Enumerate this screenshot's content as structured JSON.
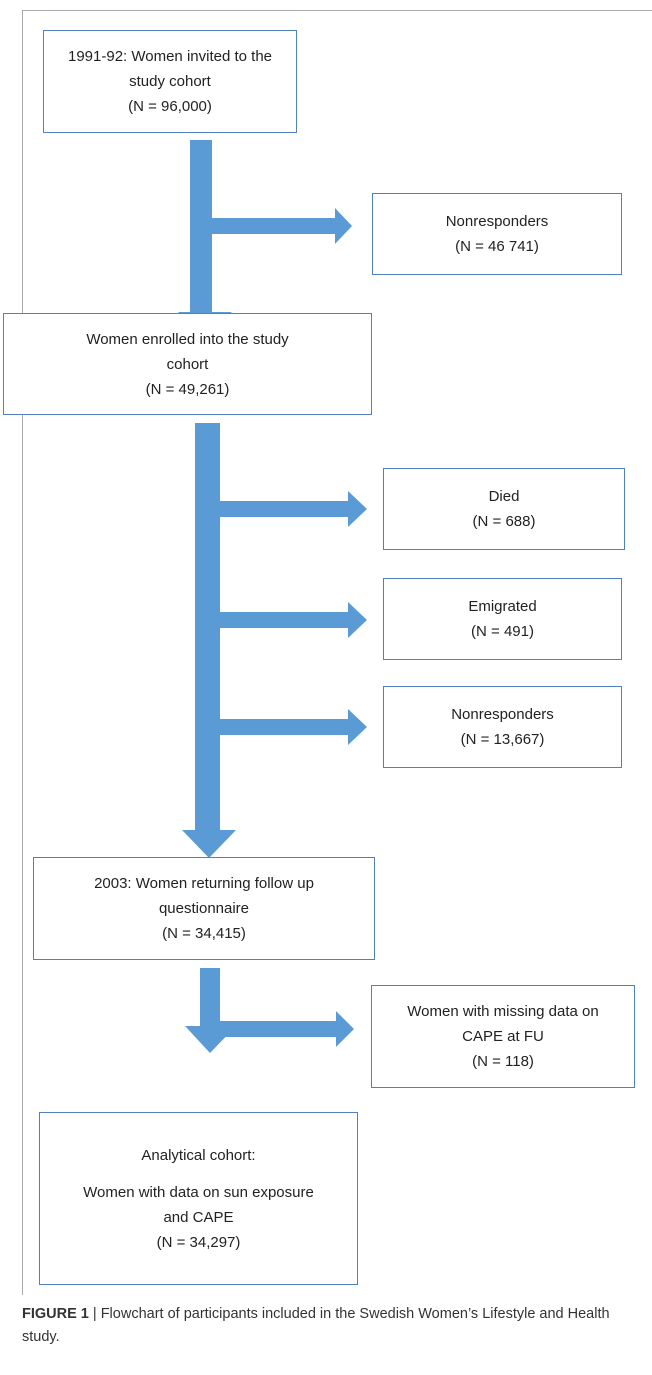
{
  "boxes": [
    {
      "lines": [
        "1991-92: Women invited to the",
        "study cohort",
        "(N = 96,000)"
      ]
    },
    {
      "lines": [
        "Nonresponders",
        "(N = 46 741)"
      ]
    },
    {
      "lines": [
        "Women enrolled into the study",
        "cohort",
        "(N = 49,261)"
      ]
    },
    {
      "lines": [
        "Died",
        "(N = 688)"
      ]
    },
    {
      "lines": [
        "Emigrated",
        "(N = 491)"
      ]
    },
    {
      "lines": [
        "Nonresponders",
        "(N = 13,667)"
      ]
    },
    {
      "lines": [
        "2003: Women returning follow up",
        "questionnaire",
        "(N = 34,415)"
      ]
    },
    {
      "lines": [
        "Women with missing data on",
        "CAPE at FU",
        "(N = 118)"
      ]
    },
    {
      "lines": [
        "Analytical cohort:",
        "",
        "Women with data on sun exposure",
        "and CAPE",
        "(N = 34,297)"
      ]
    }
  ],
  "caption": {
    "label": "FIGURE 1",
    "text": "| Flowchart of participants included in the Swedish Women’s Lifestyle and Health study."
  }
}
